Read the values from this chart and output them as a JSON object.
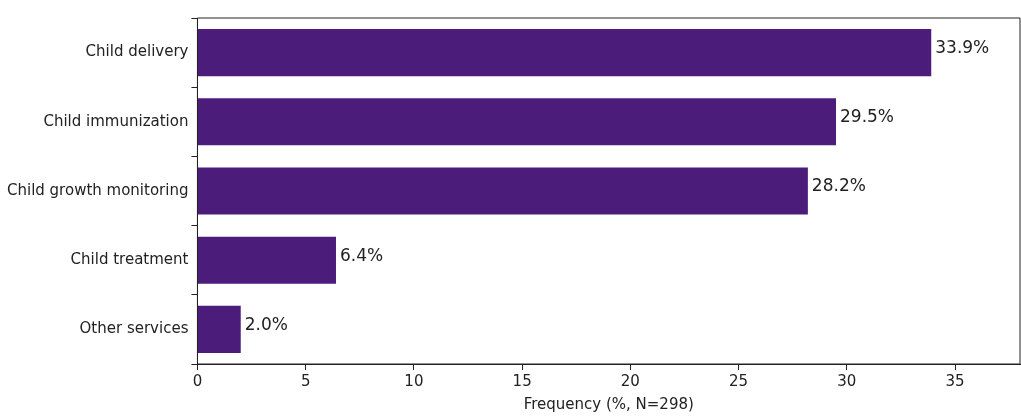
{
  "chart_data": {
    "type": "bar",
    "orientation": "horizontal",
    "xlabel": "Frequency (%, N=298)",
    "categories": [
      "Child delivery",
      "Child immunization",
      "Child growth monitoring",
      "Child treatment",
      "Other services"
    ],
    "values": [
      33.9,
      29.5,
      28.2,
      6.4,
      2.0
    ],
    "value_labels": [
      "33.9%",
      "29.5%",
      "28.2%",
      "6.4%",
      "2.0%"
    ],
    "color": "#4b1c7a",
    "xlim": [
      0,
      38
    ],
    "xticks": [
      0,
      5,
      10,
      15,
      20,
      25,
      30,
      35
    ],
    "grid": false,
    "legend": false
  }
}
